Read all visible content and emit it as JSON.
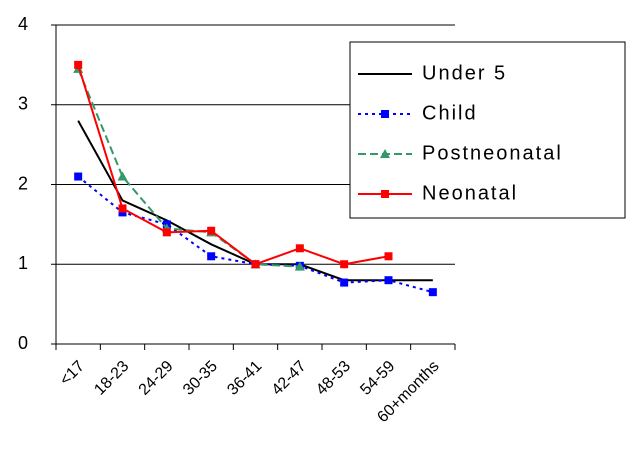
{
  "chart_data": {
    "type": "line",
    "categories": [
      "<17",
      "18-23",
      "24-29",
      "30-35",
      "36-41",
      "42-47",
      "48-53",
      "54-59",
      "60+months"
    ],
    "series": [
      {
        "name": "Under 5",
        "color": "#000000",
        "dash": "solid",
        "marker": "none",
        "values": [
          2.8,
          1.8,
          1.55,
          1.25,
          1.0,
          1.0,
          0.8,
          0.8,
          0.8
        ]
      },
      {
        "name": "Child",
        "color": "#0000ff",
        "dash": "dotted",
        "marker": "square",
        "values": [
          2.1,
          1.65,
          1.5,
          1.1,
          1.0,
          0.98,
          0.77,
          0.8,
          0.65
        ]
      },
      {
        "name": "Postneonatal",
        "color": "#339966",
        "dash": "dashed",
        "marker": "triangle",
        "values": [
          3.45,
          2.1,
          1.45,
          1.4,
          1.0,
          0.97,
          null,
          null,
          null
        ]
      },
      {
        "name": "Neonatal",
        "color": "#ff0000",
        "dash": "solid",
        "marker": "square",
        "values": [
          3.5,
          1.7,
          1.4,
          1.42,
          1.0,
          1.2,
          1.0,
          1.1,
          null
        ]
      }
    ],
    "ylim": [
      0,
      4
    ],
    "yticks": [
      0,
      1,
      2,
      3,
      4
    ],
    "grid": true,
    "legend": "upper right"
  }
}
